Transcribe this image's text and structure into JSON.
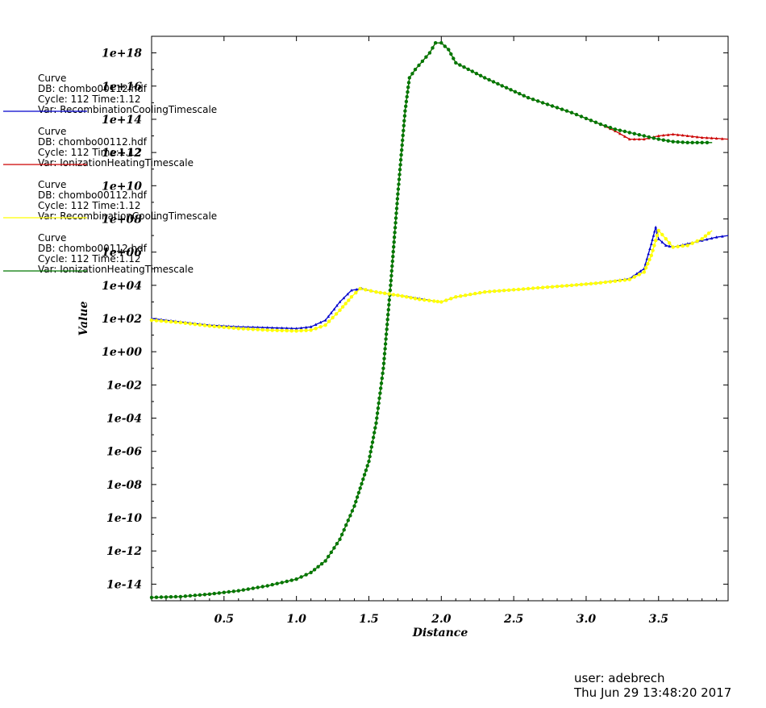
{
  "chart_data": {
    "type": "line",
    "xlabel": "Distance",
    "ylabel": "Value",
    "xlim": [
      0.0,
      3.98
    ],
    "ylim_log10": [
      -15.0,
      19.0
    ],
    "y_scale": "log",
    "x_ticks": [
      "0.5",
      "1.0",
      "1.5",
      "2.0",
      "2.5",
      "3.0",
      "3.5"
    ],
    "y_ticks": [
      "1e+18",
      "1e+16",
      "1e+14",
      "1e+12",
      "1e+10",
      "1e+08",
      "1e+06",
      "1e+04",
      "1e+02",
      "1e+00",
      "1e-02",
      "1e-04",
      "1e-06",
      "1e-08",
      "1e-10",
      "1e-12",
      "1e-14"
    ],
    "legend_placement": "left",
    "series": [
      {
        "name": "Var: RecombinationCoolingTimescale",
        "color": "#0000cc",
        "marker": "triangle",
        "label_lines": [
          "Curve",
          "DB: chombo00112.hdf",
          "Cycle: 112      Time:1.12"
        ],
        "x": [
          0.0,
          0.2,
          0.4,
          0.6,
          0.8,
          1.0,
          1.1,
          1.2,
          1.3,
          1.38,
          1.45,
          1.55,
          1.7,
          1.85,
          1.95,
          2.0,
          2.1,
          2.3,
          2.6,
          2.9,
          3.1,
          3.3,
          3.4,
          3.45,
          3.48,
          3.5,
          3.55,
          3.6,
          3.7,
          3.8,
          3.9,
          3.98
        ],
        "log10_y": [
          2.0,
          1.8,
          1.6,
          1.5,
          1.45,
          1.4,
          1.5,
          1.9,
          3.0,
          3.7,
          3.8,
          3.6,
          3.4,
          3.2,
          3.05,
          3.0,
          3.3,
          3.6,
          3.8,
          4.0,
          4.15,
          4.4,
          5.0,
          6.5,
          7.5,
          6.8,
          6.4,
          6.3,
          6.5,
          6.7,
          6.9,
          7.0
        ]
      },
      {
        "name": "Var: IonizationHeatingTimescale",
        "color": "#cc0000",
        "marker": "triangle",
        "label_lines": [
          "Curve",
          "DB: chombo00112.hdf",
          "Cycle: 112      Time:1.12"
        ],
        "x": [
          0.0,
          0.2,
          0.4,
          0.6,
          0.8,
          1.0,
          1.1,
          1.2,
          1.3,
          1.4,
          1.5,
          1.55,
          1.6,
          1.65,
          1.7,
          1.75,
          1.78,
          1.82,
          1.87,
          1.92,
          1.96,
          2.0,
          2.05,
          2.1,
          2.3,
          2.6,
          2.9,
          3.1,
          3.2,
          3.3,
          3.4,
          3.5,
          3.6,
          3.7,
          3.8,
          3.9,
          3.98
        ],
        "log10_y": [
          -14.8,
          -14.75,
          -14.6,
          -14.4,
          -14.1,
          -13.7,
          -13.3,
          -12.6,
          -11.3,
          -9.3,
          -6.6,
          -4.3,
          -1.0,
          4.0,
          9.5,
          14.5,
          16.5,
          17.0,
          17.5,
          18.0,
          18.6,
          18.6,
          18.2,
          17.4,
          16.5,
          15.3,
          14.4,
          13.7,
          13.3,
          12.8,
          12.8,
          13.0,
          13.1,
          13.0,
          12.9,
          12.85,
          12.8
        ]
      },
      {
        "name": "Var: RecombinationCoolingTimescale",
        "color": "#ffff00",
        "marker": "circle",
        "label_lines": [
          "Curve",
          "DB: chombo00112.hdf",
          "Cycle: 112      Time:1.12"
        ],
        "x": [
          0.0,
          0.2,
          0.4,
          0.6,
          0.8,
          1.0,
          1.1,
          1.2,
          1.3,
          1.38,
          1.44,
          1.55,
          1.7,
          1.85,
          1.95,
          2.0,
          2.1,
          2.3,
          2.6,
          2.9,
          3.1,
          3.3,
          3.4,
          3.45,
          3.5,
          3.55,
          3.6,
          3.7,
          3.8,
          3.87
        ],
        "log10_y": [
          1.9,
          1.75,
          1.55,
          1.4,
          1.3,
          1.25,
          1.3,
          1.6,
          2.5,
          3.3,
          3.8,
          3.6,
          3.4,
          3.15,
          3.05,
          3.0,
          3.3,
          3.6,
          3.8,
          4.0,
          4.15,
          4.35,
          4.8,
          5.8,
          7.3,
          6.8,
          6.3,
          6.4,
          6.8,
          7.3
        ]
      },
      {
        "name": "Var: IonizationHeatingTimescale",
        "color": "#007700",
        "marker": "circle",
        "label_lines": [
          "Curve",
          "DB: chombo00112.hdf",
          "Cycle: 112      Time:1.12"
        ],
        "x": [
          0.0,
          0.2,
          0.4,
          0.6,
          0.8,
          1.0,
          1.1,
          1.2,
          1.3,
          1.4,
          1.5,
          1.55,
          1.6,
          1.65,
          1.7,
          1.75,
          1.78,
          1.82,
          1.87,
          1.92,
          1.96,
          2.0,
          2.05,
          2.1,
          2.3,
          2.6,
          2.9,
          3.1,
          3.2,
          3.3,
          3.4,
          3.5,
          3.6,
          3.7,
          3.8,
          3.87
        ],
        "log10_y": [
          -14.8,
          -14.75,
          -14.6,
          -14.4,
          -14.1,
          -13.7,
          -13.3,
          -12.6,
          -11.3,
          -9.3,
          -6.6,
          -4.3,
          -1.0,
          4.0,
          9.5,
          14.5,
          16.5,
          17.0,
          17.5,
          18.0,
          18.6,
          18.6,
          18.2,
          17.4,
          16.5,
          15.3,
          14.4,
          13.7,
          13.4,
          13.2,
          13.0,
          12.8,
          12.65,
          12.6,
          12.6,
          12.6
        ]
      }
    ]
  },
  "footer": {
    "user": "user: adebrech",
    "timestamp": "Thu Jun 29 13:48:20 2017"
  }
}
